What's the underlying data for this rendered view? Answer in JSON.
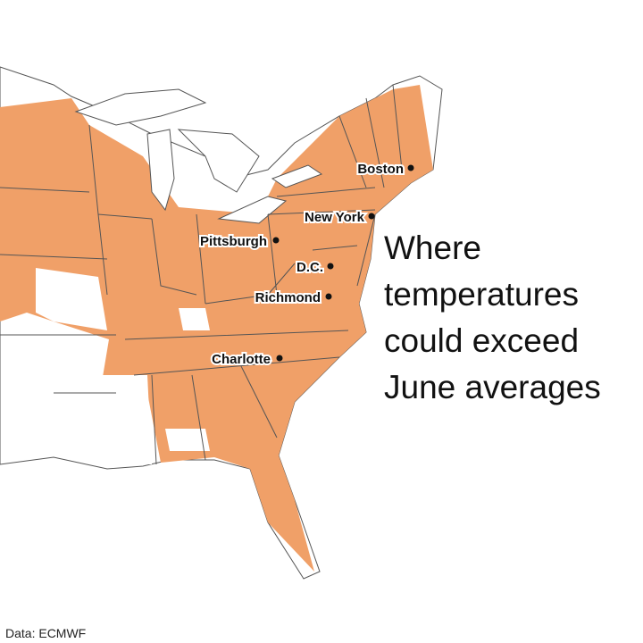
{
  "title_lines": [
    "Where",
    "temperatures",
    "could exceed",
    "June averages"
  ],
  "cities": [
    {
      "label": "Boston"
    },
    {
      "label": "New York"
    },
    {
      "label": "Pittsburgh"
    },
    {
      "label": "D.C."
    },
    {
      "label": "Richmond"
    },
    {
      "label": "Charlotte"
    }
  ],
  "source": "Data: ECMWF"
}
